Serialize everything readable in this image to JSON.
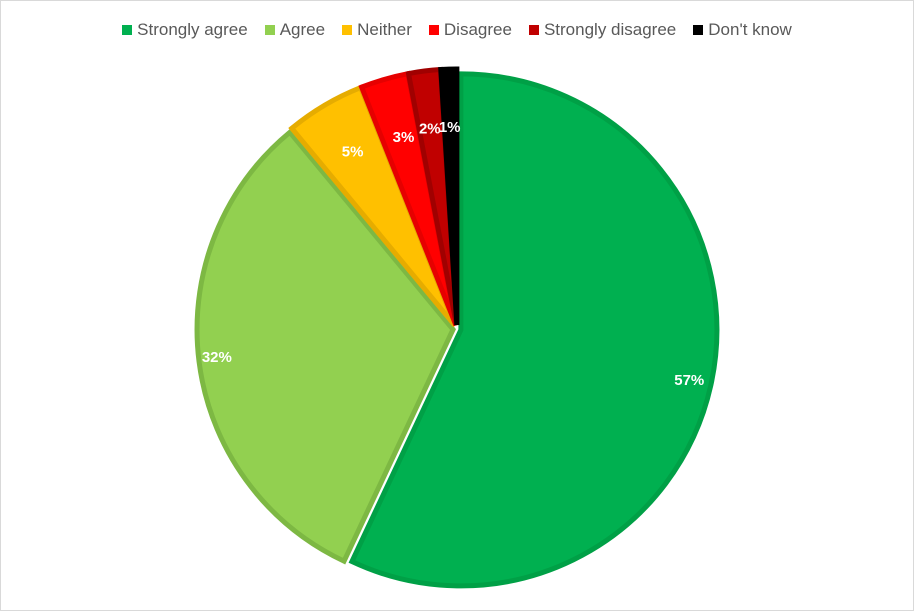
{
  "chart_data": {
    "type": "pie",
    "categories": [
      "Strongly agree",
      "Agree",
      "Neither",
      "Disagree",
      "Strongly disagree",
      "Don't know"
    ],
    "values": [
      57,
      32,
      5,
      3,
      2,
      1
    ],
    "data_labels": [
      "57%",
      "32%",
      "5%",
      "3%",
      "2%",
      "1%"
    ],
    "colors": [
      "#00B050",
      "#92D050",
      "#FFC000",
      "#FF0000",
      "#C00000",
      "#000000"
    ],
    "border_colors": [
      "#00A046",
      "#7DB843",
      "#E6AC00",
      "#E60000",
      "#A00000",
      "#000000"
    ],
    "legend_position": "top",
    "exploded": true,
    "title": ""
  }
}
